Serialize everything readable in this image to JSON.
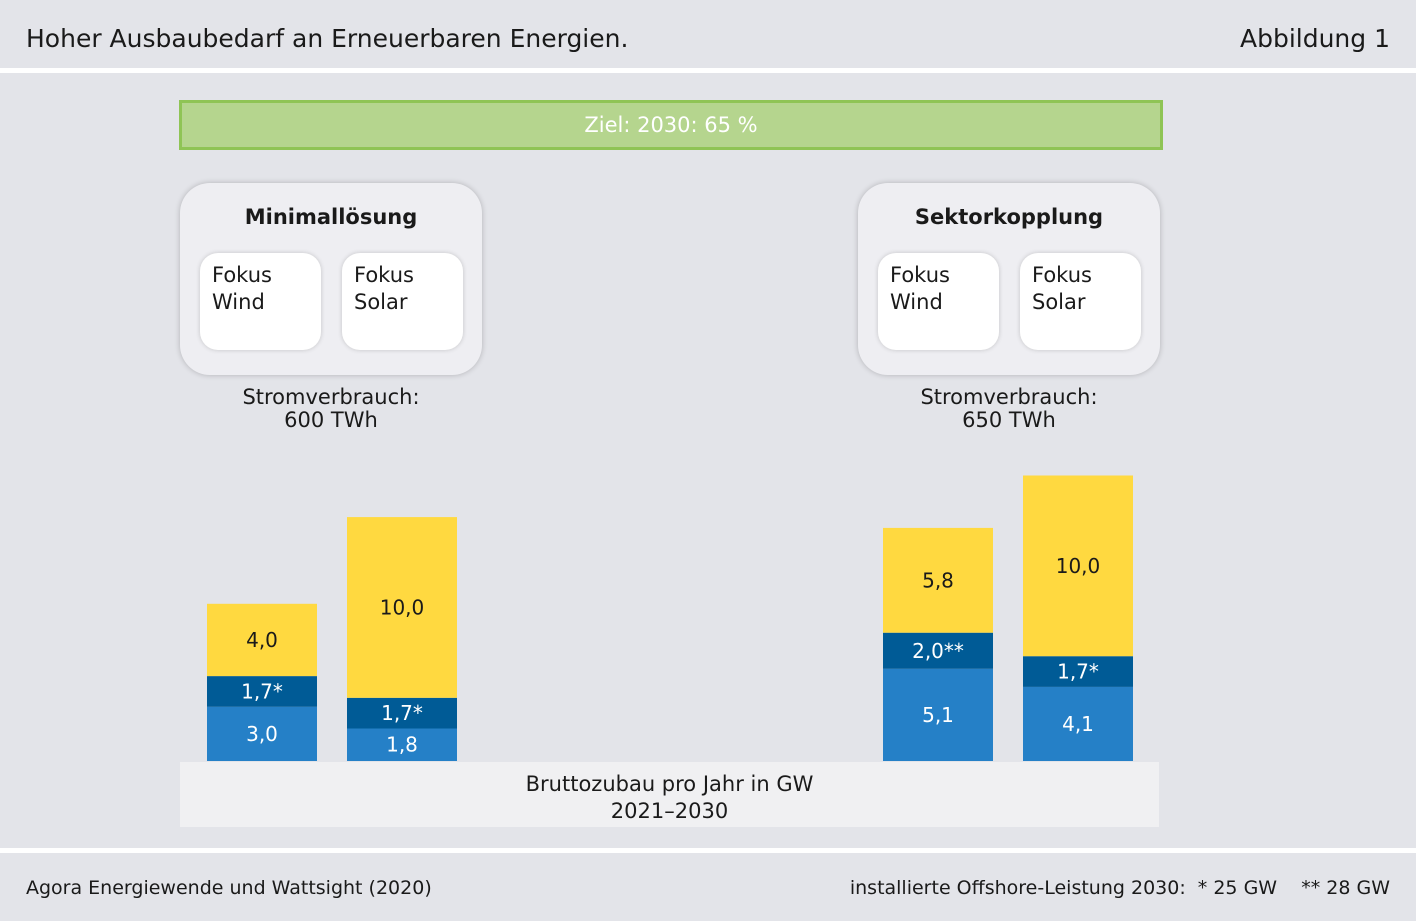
{
  "header": {
    "title": "Hoher Ausbaubedarf an Erneuerbaren Energien.",
    "figure_label": "Abbildung 1"
  },
  "goal": {
    "label": "Ziel: 2030: 65 %"
  },
  "scenarios": [
    {
      "title": "Minimallösung",
      "options": [
        [
          "Fokus",
          "Wind"
        ],
        [
          "Fokus",
          "Solar"
        ]
      ],
      "consumption": [
        "Stromverbrauch:",
        "600 TWh"
      ]
    },
    {
      "title": "Sektorkopplung",
      "options": [
        [
          "Fokus",
          "Wind"
        ],
        [
          "Fokus",
          "Solar"
        ]
      ],
      "consumption": [
        "Stromverbrauch:",
        "650 TWh"
      ]
    }
  ],
  "colors": {
    "onshore": "#2580c7",
    "offshore": "#005b96",
    "solar": "#ffd940",
    "goal_fill": "#b5d58e",
    "goal_border": "#8fc455"
  },
  "chart_data": {
    "type": "bar",
    "stacked": true,
    "categories": [
      "Minimallösung Fokus Wind",
      "Minimallösung Fokus Solar",
      "Sektorkopplung Fokus Wind",
      "Sektorkopplung Fokus Solar"
    ],
    "series": [
      {
        "key": "onshore",
        "values": [
          3.0,
          1.8,
          5.1,
          4.1
        ],
        "labels": [
          "3,0",
          "1,8",
          "5,1",
          "4,1"
        ]
      },
      {
        "key": "offshore",
        "values": [
          1.7,
          1.7,
          2.0,
          1.7
        ],
        "labels": [
          "1,7*",
          "1,7*",
          "2,0**",
          "1,7*"
        ]
      },
      {
        "key": "solar",
        "values": [
          4.0,
          10.0,
          5.8,
          10.0
        ],
        "labels": [
          "4,0",
          "10,0",
          "5,8",
          "10,0"
        ]
      }
    ],
    "xlabel": [
      "Bruttozubau pro Jahr in GW",
      "2021–2030"
    ]
  },
  "footer": {
    "source": "Agora Energiewende und Wattsight (2020)",
    "note": "installierte Offshore-Leistung 2030:  * 25 GW    ** 28 GW"
  }
}
